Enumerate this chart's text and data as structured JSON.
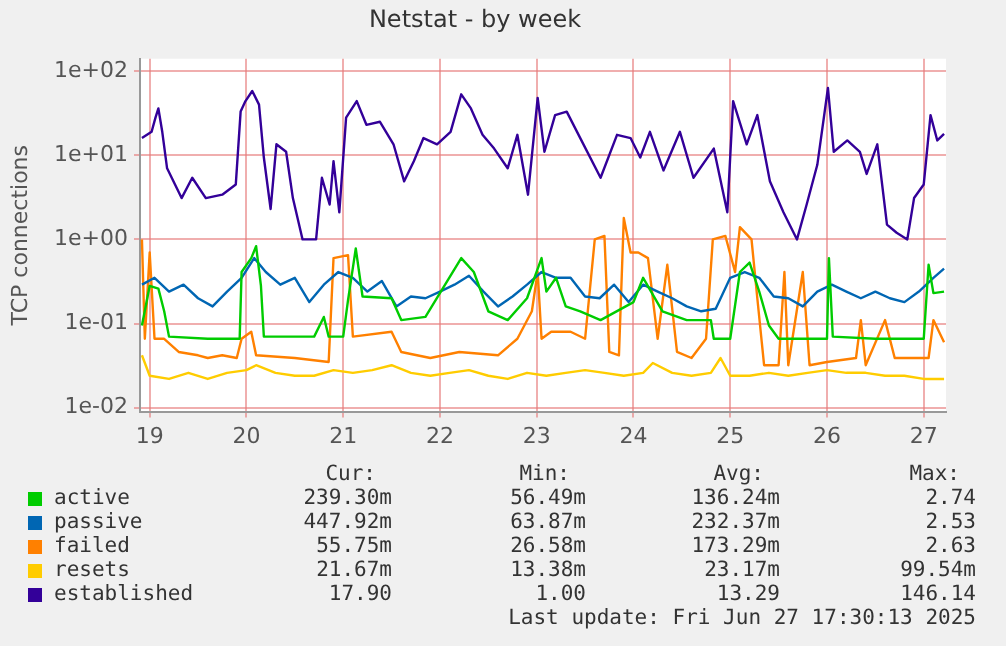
{
  "chart_data": {
    "type": "line",
    "title": "Netstat - by week",
    "ylabel": "TCP connections",
    "log": "y",
    "grid": true,
    "legend": "bottom",
    "marker": "none",
    "line_style": "solid",
    "xlim": [
      18.9,
      27.23
    ],
    "xticks": [
      19,
      20,
      21,
      22,
      23,
      24,
      25,
      26,
      27
    ],
    "ylim": [
      0.009,
      140
    ],
    "yticks": [
      {
        "value": 0.01,
        "label": "1e-02"
      },
      {
        "value": 0.1,
        "label": "1e-01"
      },
      {
        "value": 1,
        "label": "1e+00"
      },
      {
        "value": 10,
        "label": "1e+01"
      },
      {
        "value": 100,
        "label": "1e+02"
      }
    ],
    "series": [
      {
        "name": "active",
        "color": "#00cc00",
        "x": [
          18.92,
          19.0,
          19.09,
          19.15,
          19.2,
          19.6,
          19.93,
          19.95,
          20.05,
          20.1,
          20.15,
          20.18,
          20.7,
          20.8,
          20.85,
          21.0,
          21.05,
          21.13,
          21.2,
          21.5,
          21.6,
          21.85,
          22.22,
          22.35,
          22.5,
          22.7,
          22.9,
          23.05,
          23.1,
          23.2,
          23.3,
          23.45,
          23.66,
          24.0,
          24.1,
          24.3,
          24.55,
          24.8,
          24.83,
          25.0,
          25.1,
          25.2,
          25.3,
          25.4,
          25.5,
          26.0,
          26.02,
          26.06,
          26.5,
          27.0,
          27.05,
          27.1,
          27.21
        ],
        "values": [
          0.095,
          0.28,
          0.26,
          0.14,
          0.07,
          0.066,
          0.066,
          0.41,
          0.6,
          0.83,
          0.28,
          0.07,
          0.07,
          0.12,
          0.07,
          0.07,
          0.19,
          0.78,
          0.21,
          0.2,
          0.11,
          0.12,
          0.6,
          0.41,
          0.14,
          0.11,
          0.2,
          0.6,
          0.24,
          0.35,
          0.16,
          0.14,
          0.11,
          0.18,
          0.35,
          0.14,
          0.11,
          0.11,
          0.066,
          0.066,
          0.41,
          0.53,
          0.24,
          0.095,
          0.066,
          0.066,
          0.6,
          0.07,
          0.066,
          0.066,
          0.5,
          0.23,
          0.24
        ]
      },
      {
        "name": "passive",
        "color": "#0066b3",
        "x": [
          18.92,
          19.05,
          19.2,
          19.35,
          19.5,
          19.65,
          19.8,
          19.95,
          20.08,
          20.2,
          20.35,
          20.5,
          20.65,
          20.8,
          20.95,
          21.1,
          21.25,
          21.4,
          21.55,
          21.7,
          21.85,
          22.0,
          22.15,
          22.3,
          22.45,
          22.6,
          22.75,
          22.9,
          23.05,
          23.2,
          23.35,
          23.5,
          23.65,
          23.8,
          23.95,
          24.1,
          24.25,
          24.4,
          24.55,
          24.7,
          24.85,
          25.0,
          25.15,
          25.3,
          25.45,
          25.6,
          25.75,
          25.9,
          26.05,
          26.2,
          26.35,
          26.5,
          26.65,
          26.8,
          26.95,
          27.1,
          27.21
        ],
        "values": [
          0.29,
          0.35,
          0.24,
          0.29,
          0.2,
          0.16,
          0.24,
          0.35,
          0.6,
          0.41,
          0.29,
          0.35,
          0.18,
          0.29,
          0.41,
          0.35,
          0.24,
          0.32,
          0.16,
          0.21,
          0.2,
          0.24,
          0.29,
          0.37,
          0.24,
          0.16,
          0.21,
          0.29,
          0.41,
          0.35,
          0.35,
          0.21,
          0.2,
          0.29,
          0.18,
          0.29,
          0.24,
          0.2,
          0.16,
          0.14,
          0.15,
          0.35,
          0.41,
          0.35,
          0.21,
          0.2,
          0.16,
          0.24,
          0.29,
          0.24,
          0.2,
          0.24,
          0.2,
          0.18,
          0.24,
          0.35,
          0.45
        ]
      },
      {
        "name": "failed",
        "color": "#ff8000",
        "x": [
          18.92,
          18.95,
          19.0,
          19.05,
          19.15,
          19.3,
          19.5,
          19.6,
          19.75,
          19.9,
          19.95,
          20.05,
          20.1,
          20.5,
          20.85,
          20.9,
          21.05,
          21.1,
          21.5,
          21.6,
          21.9,
          22.2,
          22.6,
          22.8,
          22.95,
          23.01,
          23.05,
          23.15,
          23.35,
          23.5,
          23.6,
          23.7,
          23.75,
          23.85,
          23.9,
          23.97,
          24.05,
          24.15,
          24.25,
          24.35,
          24.45,
          24.6,
          24.75,
          24.82,
          24.95,
          25.05,
          25.1,
          25.22,
          25.28,
          25.35,
          25.5,
          25.56,
          25.6,
          25.75,
          25.82,
          26.0,
          26.3,
          26.35,
          26.4,
          26.6,
          26.7,
          27.05,
          27.1,
          27.21
        ],
        "values": [
          1.0,
          0.066,
          0.7,
          0.066,
          0.066,
          0.046,
          0.042,
          0.039,
          0.042,
          0.039,
          0.066,
          0.08,
          0.042,
          0.039,
          0.035,
          0.6,
          0.65,
          0.07,
          0.08,
          0.046,
          0.039,
          0.046,
          0.042,
          0.066,
          0.14,
          0.41,
          0.066,
          0.08,
          0.08,
          0.066,
          1.0,
          1.1,
          0.046,
          0.042,
          1.8,
          0.7,
          0.7,
          0.6,
          0.066,
          0.5,
          0.046,
          0.039,
          0.066,
          1.0,
          1.1,
          0.41,
          1.4,
          1.0,
          0.2,
          0.032,
          0.032,
          0.41,
          0.032,
          0.41,
          0.032,
          0.035,
          0.039,
          0.11,
          0.032,
          0.11,
          0.039,
          0.039,
          0.11,
          0.06
        ]
      },
      {
        "name": "resets",
        "color": "#ffcc00",
        "x": [
          18.92,
          19.0,
          19.2,
          19.4,
          19.6,
          19.8,
          20.0,
          20.1,
          20.3,
          20.5,
          20.7,
          20.9,
          21.1,
          21.3,
          21.5,
          21.7,
          21.9,
          22.1,
          22.3,
          22.5,
          22.7,
          22.9,
          23.1,
          23.3,
          23.5,
          23.7,
          23.9,
          24.1,
          24.2,
          24.4,
          24.6,
          24.8,
          24.9,
          25.0,
          25.2,
          25.4,
          25.6,
          25.8,
          26.0,
          26.2,
          26.4,
          26.6,
          26.8,
          27.0,
          27.21
        ],
        "values": [
          0.042,
          0.024,
          0.022,
          0.026,
          0.022,
          0.026,
          0.028,
          0.032,
          0.026,
          0.024,
          0.024,
          0.028,
          0.026,
          0.028,
          0.032,
          0.026,
          0.024,
          0.026,
          0.028,
          0.024,
          0.022,
          0.026,
          0.024,
          0.026,
          0.028,
          0.026,
          0.024,
          0.026,
          0.034,
          0.026,
          0.024,
          0.026,
          0.039,
          0.024,
          0.024,
          0.026,
          0.024,
          0.026,
          0.028,
          0.026,
          0.026,
          0.024,
          0.024,
          0.022,
          0.022
        ]
      },
      {
        "name": "established",
        "color": "#330099",
        "x": [
          18.92,
          19.02,
          19.06,
          19.09,
          19.13,
          19.18,
          19.33,
          19.44,
          19.58,
          19.75,
          19.89,
          19.94,
          19.99,
          20.06,
          20.13,
          20.18,
          20.25,
          20.31,
          20.41,
          20.48,
          20.58,
          20.72,
          20.78,
          20.86,
          20.9,
          20.96,
          21.03,
          21.14,
          21.24,
          21.38,
          21.52,
          21.63,
          21.73,
          21.83,
          21.97,
          22.11,
          22.22,
          22.32,
          22.44,
          22.56,
          22.7,
          22.8,
          22.91,
          23.01,
          23.08,
          23.19,
          23.31,
          23.45,
          23.66,
          23.83,
          23.97,
          24.07,
          24.17,
          24.31,
          24.48,
          24.62,
          24.83,
          24.97,
          25.03,
          25.17,
          25.28,
          25.41,
          25.55,
          25.69,
          25.79,
          25.9,
          26.01,
          26.07,
          26.21,
          26.34,
          26.41,
          26.52,
          26.62,
          26.72,
          26.83,
          26.9,
          27.0,
          27.07,
          27.14,
          27.21
        ],
        "values": [
          16,
          19,
          28,
          36,
          19,
          7,
          3.1,
          5.4,
          3.1,
          3.4,
          4.5,
          33,
          44,
          58,
          40,
          9.4,
          2.3,
          13.5,
          11,
          3.1,
          1.0,
          1.0,
          5.4,
          2.6,
          8.5,
          2.1,
          28,
          44,
          23,
          25,
          13.5,
          4.9,
          8.5,
          16,
          13.5,
          19,
          53,
          36,
          17.5,
          12,
          7,
          17.5,
          3.4,
          48,
          11,
          30,
          33,
          16,
          5.4,
          17.5,
          16,
          9.4,
          19,
          6.6,
          19,
          5.4,
          12,
          2.1,
          44,
          13.5,
          30,
          4.9,
          2.1,
          1.0,
          2.6,
          7.7,
          63,
          11,
          15,
          11,
          6,
          13.5,
          1.5,
          1.2,
          1.0,
          3.1,
          4.5,
          30,
          15,
          17.9
        ]
      }
    ],
    "annotations": [
      "Cur:",
      "Min:",
      "Avg:",
      "Max:",
      "239.30m",
      "56.49m",
      "136.24m",
      "2.74",
      "447.92m",
      "63.87m",
      "232.37m",
      "2.53",
      "55.75m",
      "26.58m",
      "173.29m",
      "2.63",
      "21.67m",
      "13.38m",
      "23.17m",
      "99.54m",
      "17.90",
      "1.00",
      "13.29",
      "146.14",
      "Last update: Fri Jun 27 17:30:13 2025"
    ]
  }
}
